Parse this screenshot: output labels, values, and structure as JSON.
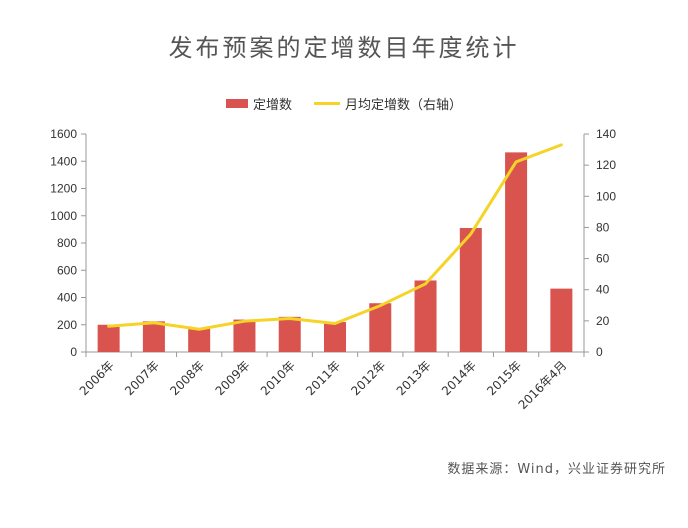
{
  "chart_data": {
    "type": "bar+line",
    "title": "发布预案的定增数目年度统计",
    "categories": [
      "2006年",
      "2007年",
      "2008年",
      "2009年",
      "2010年",
      "2011年",
      "2012年",
      "2013年",
      "2014年",
      "2015年",
      "2016年4月"
    ],
    "series": [
      {
        "name": "定增数",
        "type": "bar",
        "axis": "left",
        "color": "#d9534f",
        "values": [
          200,
          225,
          175,
          238,
          258,
          220,
          358,
          525,
          910,
          1465,
          465
        ]
      },
      {
        "name": "月均定增数（右轴）",
        "type": "line",
        "axis": "right",
        "color": "#f5d327",
        "values": [
          16.5,
          18.8,
          14.6,
          19.8,
          21.5,
          18.3,
          29.8,
          43.8,
          75.8,
          122.1,
          133
        ]
      }
    ],
    "y_left": {
      "min": 0,
      "max": 1600,
      "ticks": [
        0,
        200,
        400,
        600,
        800,
        1000,
        1200,
        1400,
        1600
      ]
    },
    "y_right": {
      "min": 0,
      "max": 140,
      "ticks": [
        0,
        20,
        40,
        60,
        80,
        100,
        120,
        140
      ]
    },
    "grid": false,
    "legend_position": "top-center"
  },
  "legend": {
    "bar_label": "定增数",
    "line_label": "月均定增数（右轴）"
  },
  "source": "数据来源：Wind，兴业证券研究所",
  "colors": {
    "bar": "#d9534f",
    "line": "#f5d327",
    "axis": "#999999"
  }
}
